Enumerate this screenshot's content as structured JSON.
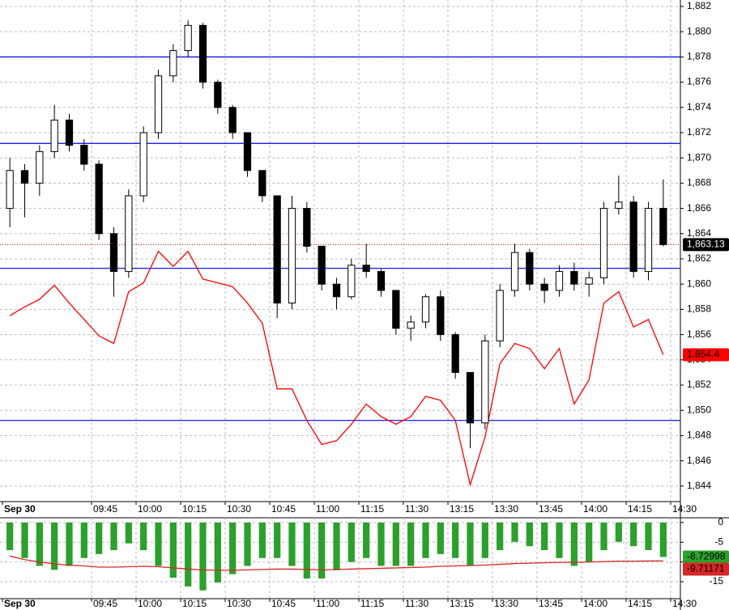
{
  "chart_data": [
    {
      "type": "candlestick",
      "xticks": [
        {
          "value": 0,
          "label": "Sep 30"
        },
        {
          "value": 6,
          "label": "09:45"
        },
        {
          "value": 9,
          "label": "10:00"
        },
        {
          "value": 12,
          "label": "10:15"
        },
        {
          "value": 15,
          "label": "10:30"
        },
        {
          "value": 18,
          "label": "10:45"
        },
        {
          "value": 21,
          "label": "11:00"
        },
        {
          "value": 24,
          "label": "11:15"
        },
        {
          "value": 27,
          "label": "11:30"
        },
        {
          "value": 30,
          "label": "13:15"
        },
        {
          "value": 33,
          "label": "13:30"
        },
        {
          "value": 36,
          "label": "13:45"
        },
        {
          "value": 39,
          "label": "14:00"
        },
        {
          "value": 42,
          "label": "14:15"
        },
        {
          "value": 45,
          "label": "14:30"
        }
      ],
      "xlim": [
        0,
        45
      ],
      "ylim": [
        1842.77,
        1882.51
      ],
      "yticks": [
        {
          "value": 1844,
          "label": "1,844"
        },
        {
          "value": 1846,
          "label": "1,846"
        },
        {
          "value": 1848,
          "label": "1,848"
        },
        {
          "value": 1850,
          "label": "1,850"
        },
        {
          "value": 1852,
          "label": "1,852"
        },
        {
          "value": 1854,
          "label": "1,854"
        },
        {
          "value": 1856,
          "label": "1,856"
        },
        {
          "value": 1858,
          "label": "1,858"
        },
        {
          "value": 1860,
          "label": "1,860"
        },
        {
          "value": 1862,
          "label": "1,862"
        },
        {
          "value": 1864,
          "label": "1,864"
        },
        {
          "value": 1866,
          "label": "1,866"
        },
        {
          "value": 1868,
          "label": "1,868"
        },
        {
          "value": 1870,
          "label": "1,870"
        },
        {
          "value": 1872,
          "label": "1,872"
        },
        {
          "value": 1874,
          "label": "1,874"
        },
        {
          "value": 1876,
          "label": "1,876"
        },
        {
          "value": 1878,
          "label": "1,878"
        },
        {
          "value": 1880,
          "label": "1,880"
        },
        {
          "value": 1882,
          "label": "1,882"
        }
      ],
      "grid": true,
      "open": [
        1866,
        1869,
        1868,
        1870.5,
        1873,
        1871,
        1869.5,
        1864,
        1861,
        1867,
        1872,
        1876.5,
        1878.5,
        1880.5,
        1876,
        1874,
        1872,
        1869,
        1867,
        1858.5,
        1866,
        1863,
        1860,
        1859,
        1861.5,
        1861,
        1859.5,
        1856.5,
        1857,
        1859,
        1856,
        1853,
        1849,
        1855.5,
        1859.5,
        1862.5,
        1860,
        1859.5,
        1861,
        1860,
        1860.5,
        1866,
        1866.5,
        1861,
        1866
      ],
      "high": [
        1870,
        1869.5,
        1871,
        1874.2,
        1873.5,
        1871.5,
        1869.8,
        1864.5,
        1867.5,
        1872.5,
        1877,
        1879,
        1880.9,
        1880.7,
        1876.2,
        1874.2,
        1872,
        1869,
        1867,
        1867,
        1866.5,
        1863,
        1860.5,
        1862,
        1863.2,
        1861.2,
        1859.5,
        1857.5,
        1859.2,
        1859.5,
        1856.2,
        1853,
        1856,
        1860,
        1863.2,
        1862.8,
        1860.5,
        1861.5,
        1861.7,
        1861,
        1866.5,
        1868.6,
        1867,
        1866.5,
        1868.3
      ],
      "low": [
        1864.5,
        1865.3,
        1867,
        1870,
        1870.5,
        1869,
        1863.5,
        1859,
        1860.5,
        1866.5,
        1871.5,
        1876,
        1878,
        1875.5,
        1873.5,
        1871.5,
        1868.5,
        1866.5,
        1857.3,
        1858,
        1862.5,
        1859.5,
        1858,
        1858.8,
        1860.5,
        1859,
        1856,
        1855.5,
        1856.5,
        1855.5,
        1852.5,
        1847,
        1848.5,
        1855,
        1859,
        1859.5,
        1858.5,
        1859,
        1859.5,
        1859,
        1860,
        1865.5,
        1860.5,
        1860.3,
        1863
      ],
      "close": [
        1869,
        1868,
        1870.5,
        1873,
        1871,
        1869.5,
        1864,
        1861,
        1867,
        1872,
        1876.5,
        1878.5,
        1880.5,
        1876,
        1874,
        1872,
        1869,
        1867,
        1858.5,
        1866,
        1863,
        1860,
        1859,
        1861.5,
        1861,
        1859.5,
        1856.5,
        1857,
        1859,
        1856,
        1853,
        1849,
        1855.5,
        1859.5,
        1862.5,
        1860,
        1859.5,
        1861,
        1860,
        1860.5,
        1866,
        1866.5,
        1861,
        1866,
        1863.13
      ],
      "value_labels": [
        null,
        null,
        null,
        null,
        null,
        null,
        null,
        null,
        null,
        null,
        null,
        null,
        null,
        null,
        null,
        null,
        null,
        null,
        null,
        null,
        null,
        null,
        null,
        null,
        null,
        null,
        null,
        null,
        null,
        null,
        null,
        null,
        null,
        null,
        null,
        null,
        null,
        null,
        null,
        null,
        null,
        null,
        null,
        null,
        "1,863.13"
      ],
      "up_color": "#ffffff",
      "down_color": "#000000",
      "hlines": {
        "color": "#0000ff",
        "values": [
          1878,
          1871.15,
          1861.25,
          1849.2
        ]
      },
      "lines": [
        {
          "color": "#ff0000",
          "values": [
            1857.5,
            1858.2,
            1858.8,
            1859.9,
            1858.5,
            1857.2,
            1855.9,
            1855.3,
            1859.4,
            1860.1,
            1862.6,
            1861.4,
            1862.6,
            1860.4,
            1860.1,
            1859.8,
            1858.5,
            1856.9,
            1851.7,
            1851.7,
            1849.2,
            1847.3,
            1847.6,
            1848.9,
            1850.5,
            1849.5,
            1848.9,
            1849.5,
            1851.1,
            1850.8,
            1849.2,
            1844.1,
            1847.9,
            1853.7,
            1855.3,
            1854.9,
            1853.3,
            1854.9,
            1850.5,
            1852.4,
            1858.5,
            1859.4,
            1856.6,
            1857.2,
            1854.4
          ],
          "value_labels": [
            null,
            null,
            null,
            null,
            null,
            null,
            null,
            null,
            null,
            null,
            null,
            null,
            null,
            null,
            null,
            null,
            null,
            null,
            null,
            null,
            null,
            null,
            null,
            null,
            null,
            null,
            null,
            null,
            null,
            null,
            null,
            null,
            null,
            null,
            null,
            null,
            null,
            null,
            null,
            null,
            null,
            null,
            null,
            null,
            "1,854.4"
          ]
        }
      ]
    },
    {
      "type": "bar",
      "xticks": [
        {
          "value": 0,
          "label": "Sep 30"
        },
        {
          "value": 6,
          "label": "09:45"
        },
        {
          "value": 9,
          "label": "10:00"
        },
        {
          "value": 12,
          "label": "10:15"
        },
        {
          "value": 15,
          "label": "10:30"
        },
        {
          "value": 18,
          "label": "10:45"
        },
        {
          "value": 21,
          "label": "11:00"
        },
        {
          "value": 24,
          "label": "11:15"
        },
        {
          "value": 27,
          "label": "11:30"
        },
        {
          "value": 30,
          "label": "13:15"
        },
        {
          "value": 33,
          "label": "13:30"
        },
        {
          "value": 36,
          "label": "13:45"
        },
        {
          "value": 39,
          "label": "14:00"
        },
        {
          "value": 42,
          "label": "14:15"
        },
        {
          "value": 45,
          "label": "14:30"
        }
      ],
      "xlim": [
        0,
        45
      ],
      "ylim": [
        -19.3,
        1.2
      ],
      "yticks": [
        0,
        -5,
        -10,
        -15
      ],
      "grid": true,
      "color": "#2ca02c",
      "values": [
        -7,
        -9,
        -11,
        -12,
        -11,
        -9,
        -8,
        -7,
        -5.3,
        -7,
        -11,
        -14,
        -16.2,
        -17.2,
        -15.2,
        -13.1,
        -11,
        -9,
        -9,
        -11,
        -14.2,
        -14.2,
        -12.1,
        -10,
        -9,
        -11,
        -11,
        -11,
        -9,
        -8,
        -9,
        -11,
        -9,
        -7,
        -4.9,
        -6,
        -7,
        -9,
        -11,
        -10,
        -7,
        -4.9,
        -6,
        -7,
        -8.72998
      ],
      "value_labels": [
        null,
        null,
        null,
        null,
        null,
        null,
        null,
        null,
        null,
        null,
        null,
        null,
        null,
        null,
        null,
        null,
        null,
        null,
        null,
        null,
        null,
        null,
        null,
        null,
        null,
        null,
        null,
        null,
        null,
        null,
        null,
        null,
        null,
        null,
        null,
        null,
        null,
        null,
        null,
        null,
        null,
        null,
        null,
        null,
        "-8.72998"
      ],
      "lines": [
        {
          "color": "#d62728",
          "values": [
            -8.5,
            -9.4,
            -10,
            -10.5,
            -10.8,
            -11,
            -11.3,
            -11.3,
            -11.2,
            -11.1,
            -11.2,
            -11.5,
            -11.8,
            -12,
            -12.1,
            -12.1,
            -12,
            -11.9,
            -11.8,
            -11.8,
            -11.9,
            -12,
            -11.9,
            -11.8,
            -11.7,
            -11.6,
            -11.5,
            -11.4,
            -11.3,
            -11.1,
            -11,
            -10.9,
            -10.8,
            -10.6,
            -10.4,
            -10.3,
            -10.2,
            -10.1,
            -10.1,
            -10,
            -9.9,
            -9.8,
            -9.8,
            -9.75,
            -9.71171
          ],
          "value_labels": [
            null,
            null,
            null,
            null,
            null,
            null,
            null,
            null,
            null,
            null,
            null,
            null,
            null,
            null,
            null,
            null,
            null,
            null,
            null,
            null,
            null,
            null,
            null,
            null,
            null,
            null,
            null,
            null,
            null,
            null,
            null,
            null,
            null,
            null,
            null,
            null,
            null,
            null,
            null,
            null,
            null,
            null,
            null,
            null,
            "-9.71171"
          ]
        }
      ]
    }
  ]
}
